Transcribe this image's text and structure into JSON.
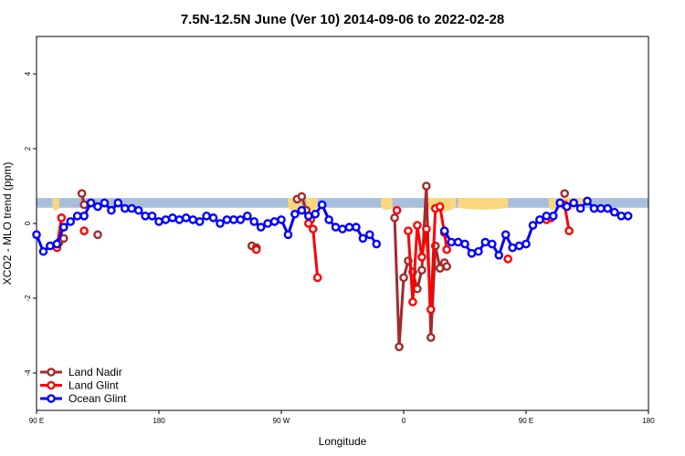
{
  "chart_data": {
    "type": "line",
    "title": "7.5N-12.5N June (Ver 10)   2014-09-06 to 2022-02-28",
    "xlabel": "Longitude",
    "ylabel": "XCO2 - MLO trend (ppm)",
    "xlim": [
      -90,
      180
    ],
    "ylim": [
      -5,
      5
    ],
    "x_ticks": [
      {
        "value": -90,
        "label": "90 E"
      },
      {
        "value": -36,
        "label": "180"
      },
      {
        "value": 18,
        "label": "90 W"
      },
      {
        "value": 72,
        "label": "0"
      },
      {
        "value": 126,
        "label": "90 E"
      },
      {
        "value": 180,
        "label": "180"
      }
    ],
    "y_ticks": [
      -4,
      -2,
      0,
      2,
      4
    ],
    "grid": false,
    "legend_position": "bottom-left",
    "band": {
      "y_range": [
        0.42,
        0.68
      ],
      "colors": {
        "ocean": "#a8bfdc",
        "land": "#fbd67c"
      },
      "land_segments": [
        {
          "x": [
            -83,
            -80
          ],
          "depth": 0.15
        },
        {
          "x": [
            21,
            27
          ],
          "depth": 0.2
        },
        {
          "x": [
            29,
            34
          ],
          "depth": 0.15
        },
        {
          "x": [
            62,
            67
          ],
          "depth": 0.12
        },
        {
          "x": [
            82,
            95
          ],
          "depth": 0.2
        },
        {
          "x": [
            96,
            118
          ],
          "depth": 0.1
        },
        {
          "x": [
            136,
            139
          ],
          "depth": 0.12
        },
        {
          "x": [
            141,
            148
          ],
          "depth": 0.15
        },
        {
          "x": [
            149,
            152
          ],
          "depth": 0.1
        }
      ]
    },
    "series": [
      {
        "name": "Land Nadir",
        "color": "#a52a2a",
        "segments": [
          [
            [
              -80,
              -0.5
            ],
            [
              -78,
              -0.4
            ]
          ],
          [
            [
              -70,
              0.8
            ],
            [
              -69,
              0.5
            ]
          ],
          [
            [
              -63,
              -0.3
            ]
          ],
          [
            [
              5,
              -0.6
            ],
            [
              7,
              -0.65
            ]
          ],
          [
            [
              25,
              0.65
            ],
            [
              27,
              0.72
            ],
            [
              29,
              0.35
            ],
            [
              31,
              0.1
            ]
          ],
          [
            [
              68,
              0.15
            ],
            [
              70,
              -3.3
            ],
            [
              72,
              -1.45
            ],
            [
              74,
              -1.0
            ],
            [
              76,
              -1.3
            ],
            [
              78,
              -1.75
            ],
            [
              80,
              -1.25
            ],
            [
              82,
              1.0
            ],
            [
              84,
              -3.05
            ],
            [
              86,
              -0.6
            ],
            [
              88,
              -1.2
            ],
            [
              90,
              -1.05
            ],
            [
              91,
              -1.15
            ]
          ],
          [
            [
              143,
              0.8
            ]
          ]
        ]
      },
      {
        "name": "Land Glint",
        "color": "#ff0000",
        "segments": [
          [
            [
              -81,
              -0.65
            ],
            [
              -79,
              0.15
            ]
          ],
          [
            [
              -69,
              -0.2
            ]
          ],
          [
            [
              7,
              -0.7
            ]
          ],
          [
            [
              30,
              0.0
            ],
            [
              32,
              -0.15
            ],
            [
              34,
              -1.45
            ]
          ],
          [
            [
              69,
              0.35
            ]
          ],
          [
            [
              74,
              -0.2
            ],
            [
              76,
              -2.1
            ],
            [
              78,
              -0.05
            ],
            [
              80,
              -0.9
            ],
            [
              82,
              -0.15
            ],
            [
              84,
              -2.3
            ],
            [
              86,
              0.4
            ],
            [
              88,
              0.45
            ],
            [
              90,
              -0.25
            ],
            [
              91,
              -0.7
            ]
          ],
          [
            [
              118,
              -0.95
            ]
          ],
          [
            [
              135,
              0.1
            ],
            [
              137,
              0.15
            ]
          ],
          [
            [
              143,
              0.5
            ],
            [
              145,
              -0.2
            ]
          ]
        ]
      },
      {
        "name": "Ocean Glint",
        "color": "#0000ff",
        "segments": [
          [
            [
              -90,
              -0.3
            ],
            [
              -87,
              -0.75
            ],
            [
              -84,
              -0.6
            ],
            [
              -81,
              -0.55
            ],
            [
              -78,
              -0.1
            ],
            [
              -75,
              0.05
            ],
            [
              -72,
              0.2
            ],
            [
              -69,
              0.2
            ],
            [
              -66,
              0.55
            ],
            [
              -63,
              0.45
            ],
            [
              -60,
              0.55
            ],
            [
              -57,
              0.35
            ],
            [
              -54,
              0.55
            ],
            [
              -51,
              0.4
            ],
            [
              -48,
              0.4
            ],
            [
              -45,
              0.35
            ],
            [
              -42,
              0.2
            ],
            [
              -39,
              0.2
            ],
            [
              -36,
              0.05
            ],
            [
              -33,
              0.1
            ],
            [
              -30,
              0.15
            ],
            [
              -27,
              0.1
            ],
            [
              -24,
              0.15
            ],
            [
              -21,
              0.1
            ],
            [
              -18,
              0.05
            ],
            [
              -15,
              0.2
            ],
            [
              -12,
              0.15
            ],
            [
              -9,
              0.0
            ],
            [
              -6,
              0.1
            ],
            [
              -3,
              0.1
            ],
            [
              0,
              0.1
            ],
            [
              3,
              0.2
            ],
            [
              6,
              0.05
            ],
            [
              9,
              -0.1
            ],
            [
              12,
              0.0
            ],
            [
              15,
              0.05
            ],
            [
              18,
              0.1
            ],
            [
              21,
              -0.3
            ],
            [
              24,
              0.25
            ],
            [
              27,
              0.35
            ],
            [
              30,
              0.2
            ],
            [
              33,
              0.25
            ],
            [
              36,
              0.5
            ],
            [
              39,
              0.1
            ],
            [
              42,
              -0.1
            ],
            [
              45,
              -0.15
            ],
            [
              48,
              -0.1
            ],
            [
              51,
              -0.1
            ],
            [
              54,
              -0.4
            ],
            [
              57,
              -0.3
            ],
            [
              60,
              -0.55
            ]
          ],
          [
            [
              90,
              -0.2
            ],
            [
              93,
              -0.5
            ],
            [
              96,
              -0.5
            ],
            [
              99,
              -0.55
            ],
            [
              102,
              -0.8
            ],
            [
              105,
              -0.75
            ],
            [
              108,
              -0.5
            ],
            [
              111,
              -0.55
            ],
            [
              114,
              -0.85
            ],
            [
              117,
              -0.3
            ],
            [
              120,
              -0.65
            ],
            [
              123,
              -0.6
            ],
            [
              126,
              -0.55
            ],
            [
              129,
              -0.05
            ],
            [
              132,
              0.1
            ],
            [
              135,
              0.2
            ],
            [
              138,
              0.2
            ],
            [
              141,
              0.55
            ],
            [
              144,
              0.45
            ],
            [
              147,
              0.55
            ],
            [
              150,
              0.4
            ],
            [
              153,
              0.6
            ],
            [
              156,
              0.4
            ],
            [
              159,
              0.4
            ],
            [
              162,
              0.4
            ],
            [
              165,
              0.3
            ],
            [
              168,
              0.2
            ],
            [
              171,
              0.2
            ]
          ]
        ]
      }
    ]
  }
}
